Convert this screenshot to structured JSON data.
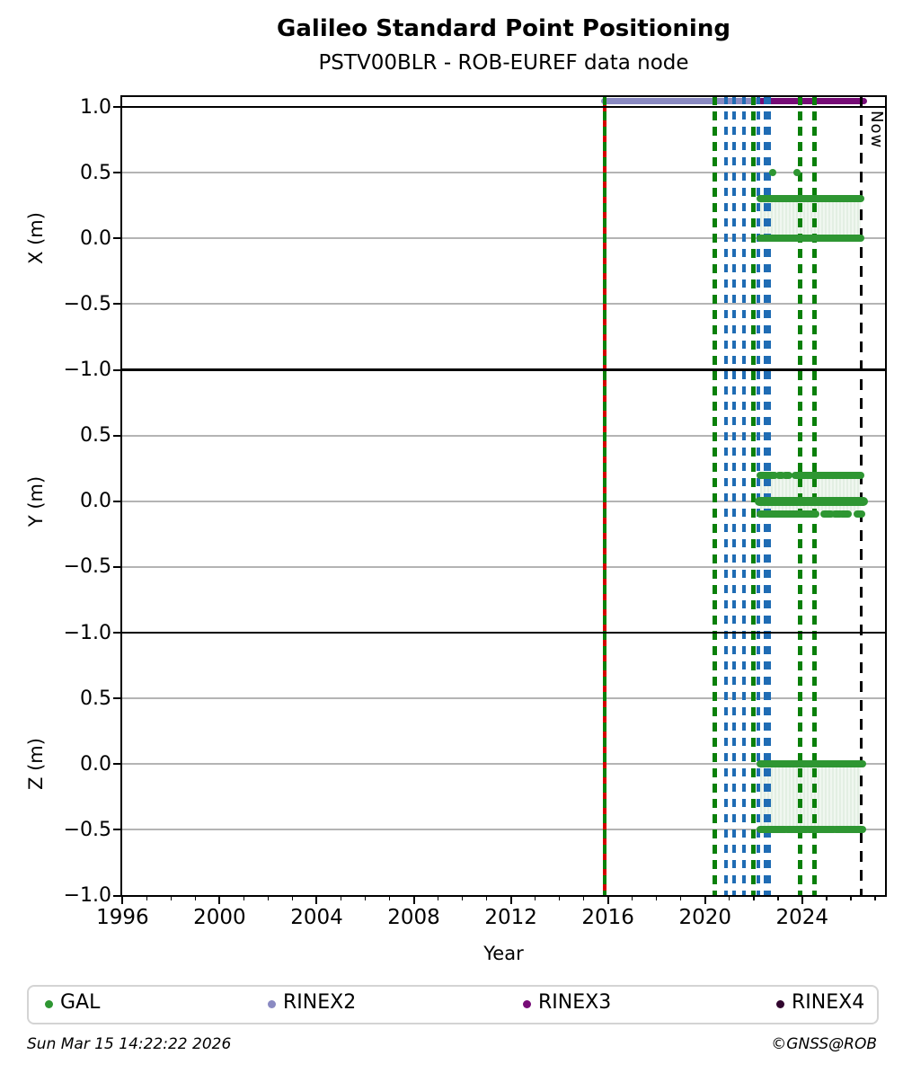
{
  "footer": {
    "timestamp": "Sun Mar 15 14:22:22 2026",
    "credit": "©GNSS@ROB"
  },
  "legend": {
    "items": [
      {
        "label": "GAL",
        "color": "#2e9632"
      },
      {
        "label": "RINEX2",
        "color": "#8a8ac2"
      },
      {
        "label": "RINEX3",
        "color": "#760b76"
      },
      {
        "label": "RINEX4",
        "color": "#31062e"
      }
    ]
  },
  "colors": {
    "green_marker": "#2e9632",
    "green_line": "#0a800a",
    "blue_line": "#1f6cb4",
    "red": "#d40000",
    "black": "#000000",
    "grid": "#b4b4b4",
    "fill_a": "#e3efe3",
    "fill_b": "#f0f7f0",
    "rinex2": "#8a8ac2",
    "rinex3": "#760b76"
  },
  "chart_data": {
    "type": "scatter",
    "title": "Galileo Standard Point Positioning",
    "subtitle": "PSTV00BLR - ROB-EUREF data node",
    "xlabel": "Year",
    "grid": true,
    "legend_position": "bottom",
    "xlim": [
      1995.95,
      2027.45
    ],
    "x_major_ticks": [
      1996,
      2000,
      2004,
      2008,
      2012,
      2016,
      2020,
      2024
    ],
    "x_minor_step": 1,
    "now_marker": {
      "x": 2026.45,
      "label": "Now"
    },
    "subplots": [
      {
        "ylabel": "X (m)",
        "ylim": [
          -1.0,
          1.0
        ],
        "yticks": [
          1.0,
          0.5,
          0.0,
          -0.5,
          -1.0
        ],
        "gridlines": [
          0.5,
          0.0,
          -0.5
        ],
        "series": "GAL",
        "points": [
          {
            "x": 2022.8,
            "y": 0.5
          },
          {
            "x": 2023.8,
            "y": 0.5
          }
        ],
        "bands": [
          {
            "y": 0.3,
            "segments": [
              [
                2022.25,
                2026.4
              ]
            ]
          },
          {
            "y": 0.0,
            "segments": [
              [
                2022.25,
                2026.4
              ]
            ]
          }
        ],
        "fill_between": [
          {
            "y0": 0.0,
            "y1": 0.3,
            "x0": 2022.25,
            "x1": 2026.4
          }
        ]
      },
      {
        "ylabel": "Y (m)",
        "ylim": [
          -1.0,
          1.0
        ],
        "yticks": [
          0.5,
          0.0,
          -0.5,
          -1.0
        ],
        "gridlines": [
          0.5,
          0.0,
          -0.5
        ],
        "series": "GAL",
        "points": [],
        "bands": [
          {
            "y": 0.2,
            "segments": [
              [
                2022.25,
                2022.85
              ],
              [
                2023.05,
                2023.15
              ],
              [
                2023.3,
                2023.45
              ],
              [
                2023.7,
                2026.4
              ]
            ]
          },
          {
            "y": 0.0,
            "w": 10,
            "segments": [
              [
                2022.2,
                2026.55
              ]
            ]
          },
          {
            "y": -0.1,
            "segments": [
              [
                2022.25,
                2024.55
              ],
              [
                2024.9,
                2025.2
              ],
              [
                2025.35,
                2025.55
              ],
              [
                2025.65,
                2025.9
              ],
              [
                2026.25,
                2026.45
              ]
            ]
          }
        ],
        "fill_between": [
          {
            "y0": -0.1,
            "y1": 0.2,
            "x0": 2022.25,
            "x1": 2026.4
          }
        ]
      },
      {
        "ylabel": "Z (m)",
        "ylim": [
          -1.0,
          1.0
        ],
        "yticks": [
          0.5,
          0.0,
          -0.5,
          -1.0
        ],
        "gridlines": [
          0.5,
          0.0,
          -0.5
        ],
        "series": "GAL",
        "points": [],
        "bands": [
          {
            "y": 0.0,
            "segments": [
              [
                2022.25,
                2026.5
              ]
            ]
          },
          {
            "y": -0.5,
            "segments": [
              [
                2022.25,
                2023.3
              ],
              [
                2023.37,
                2024.2
              ],
              [
                2024.27,
                2025.3
              ],
              [
                2025.37,
                2026.5
              ]
            ]
          }
        ],
        "fill_between": [
          {
            "y0": -0.5,
            "y1": 0.0,
            "x0": 2022.25,
            "x1": 2026.4
          }
        ]
      }
    ],
    "vlines": [
      {
        "x": 2015.85,
        "kind": "epoch"
      },
      {
        "x": 2020.4,
        "kind": "green"
      },
      {
        "x": 2020.85,
        "kind": "blue"
      },
      {
        "x": 2021.2,
        "kind": "blue"
      },
      {
        "x": 2021.62,
        "kind": "blue"
      },
      {
        "x": 2022.0,
        "kind": "green"
      },
      {
        "x": 2022.2,
        "kind": "blue"
      },
      {
        "x": 2022.5,
        "kind": "blue"
      },
      {
        "x": 2022.65,
        "kind": "blue"
      },
      {
        "x": 2023.92,
        "kind": "green"
      },
      {
        "x": 2024.52,
        "kind": "green"
      },
      {
        "x": 2026.45,
        "kind": "now",
        "label": "Now"
      }
    ],
    "spans": [
      {
        "label": "RINEX2",
        "x0": 2015.85,
        "x1": 2022.35,
        "color": "#8a8ac2"
      },
      {
        "label": "RINEX3",
        "x0": 2022.35,
        "x1": 2026.52,
        "color": "#760b76"
      }
    ]
  }
}
